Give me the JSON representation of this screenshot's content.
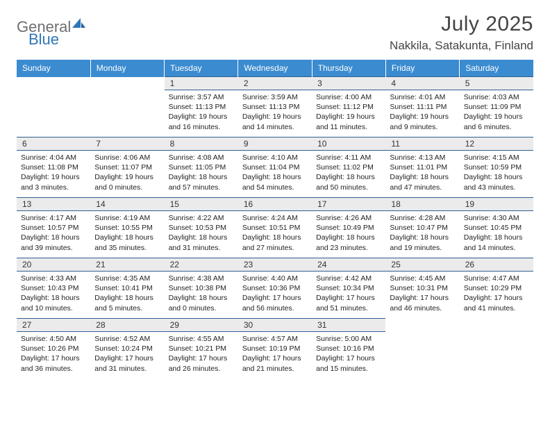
{
  "logo": {
    "part1": "General",
    "part2": "Blue"
  },
  "title": "July 2025",
  "location": "Nakkila, Satakunta, Finland",
  "colors": {
    "header_bg": "#3b8bd0",
    "header_text": "#ffffff",
    "daynum_bg": "#ebebeb",
    "border": "#2e5f8f",
    "logo_gray": "#6d6e71",
    "logo_blue": "#2e75b6",
    "text": "#222222",
    "background": "#ffffff"
  },
  "weekdays": [
    "Sunday",
    "Monday",
    "Tuesday",
    "Wednesday",
    "Thursday",
    "Friday",
    "Saturday"
  ],
  "weeks": [
    {
      "nums": [
        "",
        "",
        "1",
        "2",
        "3",
        "4",
        "5"
      ],
      "info": [
        null,
        null,
        {
          "sunrise": "Sunrise: 3:57 AM",
          "sunset": "Sunset: 11:13 PM",
          "daylight": "Daylight: 19 hours and 16 minutes."
        },
        {
          "sunrise": "Sunrise: 3:59 AM",
          "sunset": "Sunset: 11:13 PM",
          "daylight": "Daylight: 19 hours and 14 minutes."
        },
        {
          "sunrise": "Sunrise: 4:00 AM",
          "sunset": "Sunset: 11:12 PM",
          "daylight": "Daylight: 19 hours and 11 minutes."
        },
        {
          "sunrise": "Sunrise: 4:01 AM",
          "sunset": "Sunset: 11:11 PM",
          "daylight": "Daylight: 19 hours and 9 minutes."
        },
        {
          "sunrise": "Sunrise: 4:03 AM",
          "sunset": "Sunset: 11:09 PM",
          "daylight": "Daylight: 19 hours and 6 minutes."
        }
      ]
    },
    {
      "nums": [
        "6",
        "7",
        "8",
        "9",
        "10",
        "11",
        "12"
      ],
      "info": [
        {
          "sunrise": "Sunrise: 4:04 AM",
          "sunset": "Sunset: 11:08 PM",
          "daylight": "Daylight: 19 hours and 3 minutes."
        },
        {
          "sunrise": "Sunrise: 4:06 AM",
          "sunset": "Sunset: 11:07 PM",
          "daylight": "Daylight: 19 hours and 0 minutes."
        },
        {
          "sunrise": "Sunrise: 4:08 AM",
          "sunset": "Sunset: 11:05 PM",
          "daylight": "Daylight: 18 hours and 57 minutes."
        },
        {
          "sunrise": "Sunrise: 4:10 AM",
          "sunset": "Sunset: 11:04 PM",
          "daylight": "Daylight: 18 hours and 54 minutes."
        },
        {
          "sunrise": "Sunrise: 4:11 AM",
          "sunset": "Sunset: 11:02 PM",
          "daylight": "Daylight: 18 hours and 50 minutes."
        },
        {
          "sunrise": "Sunrise: 4:13 AM",
          "sunset": "Sunset: 11:01 PM",
          "daylight": "Daylight: 18 hours and 47 minutes."
        },
        {
          "sunrise": "Sunrise: 4:15 AM",
          "sunset": "Sunset: 10:59 PM",
          "daylight": "Daylight: 18 hours and 43 minutes."
        }
      ]
    },
    {
      "nums": [
        "13",
        "14",
        "15",
        "16",
        "17",
        "18",
        "19"
      ],
      "info": [
        {
          "sunrise": "Sunrise: 4:17 AM",
          "sunset": "Sunset: 10:57 PM",
          "daylight": "Daylight: 18 hours and 39 minutes."
        },
        {
          "sunrise": "Sunrise: 4:19 AM",
          "sunset": "Sunset: 10:55 PM",
          "daylight": "Daylight: 18 hours and 35 minutes."
        },
        {
          "sunrise": "Sunrise: 4:22 AM",
          "sunset": "Sunset: 10:53 PM",
          "daylight": "Daylight: 18 hours and 31 minutes."
        },
        {
          "sunrise": "Sunrise: 4:24 AM",
          "sunset": "Sunset: 10:51 PM",
          "daylight": "Daylight: 18 hours and 27 minutes."
        },
        {
          "sunrise": "Sunrise: 4:26 AM",
          "sunset": "Sunset: 10:49 PM",
          "daylight": "Daylight: 18 hours and 23 minutes."
        },
        {
          "sunrise": "Sunrise: 4:28 AM",
          "sunset": "Sunset: 10:47 PM",
          "daylight": "Daylight: 18 hours and 19 minutes."
        },
        {
          "sunrise": "Sunrise: 4:30 AM",
          "sunset": "Sunset: 10:45 PM",
          "daylight": "Daylight: 18 hours and 14 minutes."
        }
      ]
    },
    {
      "nums": [
        "20",
        "21",
        "22",
        "23",
        "24",
        "25",
        "26"
      ],
      "info": [
        {
          "sunrise": "Sunrise: 4:33 AM",
          "sunset": "Sunset: 10:43 PM",
          "daylight": "Daylight: 18 hours and 10 minutes."
        },
        {
          "sunrise": "Sunrise: 4:35 AM",
          "sunset": "Sunset: 10:41 PM",
          "daylight": "Daylight: 18 hours and 5 minutes."
        },
        {
          "sunrise": "Sunrise: 4:38 AM",
          "sunset": "Sunset: 10:38 PM",
          "daylight": "Daylight: 18 hours and 0 minutes."
        },
        {
          "sunrise": "Sunrise: 4:40 AM",
          "sunset": "Sunset: 10:36 PM",
          "daylight": "Daylight: 17 hours and 56 minutes."
        },
        {
          "sunrise": "Sunrise: 4:42 AM",
          "sunset": "Sunset: 10:34 PM",
          "daylight": "Daylight: 17 hours and 51 minutes."
        },
        {
          "sunrise": "Sunrise: 4:45 AM",
          "sunset": "Sunset: 10:31 PM",
          "daylight": "Daylight: 17 hours and 46 minutes."
        },
        {
          "sunrise": "Sunrise: 4:47 AM",
          "sunset": "Sunset: 10:29 PM",
          "daylight": "Daylight: 17 hours and 41 minutes."
        }
      ]
    },
    {
      "nums": [
        "27",
        "28",
        "29",
        "30",
        "31",
        "",
        ""
      ],
      "info": [
        {
          "sunrise": "Sunrise: 4:50 AM",
          "sunset": "Sunset: 10:26 PM",
          "daylight": "Daylight: 17 hours and 36 minutes."
        },
        {
          "sunrise": "Sunrise: 4:52 AM",
          "sunset": "Sunset: 10:24 PM",
          "daylight": "Daylight: 17 hours and 31 minutes."
        },
        {
          "sunrise": "Sunrise: 4:55 AM",
          "sunset": "Sunset: 10:21 PM",
          "daylight": "Daylight: 17 hours and 26 minutes."
        },
        {
          "sunrise": "Sunrise: 4:57 AM",
          "sunset": "Sunset: 10:19 PM",
          "daylight": "Daylight: 17 hours and 21 minutes."
        },
        {
          "sunrise": "Sunrise: 5:00 AM",
          "sunset": "Sunset: 10:16 PM",
          "daylight": "Daylight: 17 hours and 15 minutes."
        },
        null,
        null
      ]
    }
  ]
}
